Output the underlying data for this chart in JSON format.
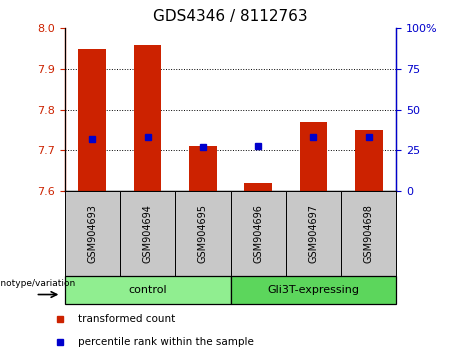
{
  "title": "GDS4346 / 8112763",
  "samples": [
    "GSM904693",
    "GSM904694",
    "GSM904695",
    "GSM904696",
    "GSM904697",
    "GSM904698"
  ],
  "transformed_counts": [
    7.95,
    7.96,
    7.71,
    7.62,
    7.77,
    7.75
  ],
  "percentile_ranks": [
    32,
    33,
    27,
    28,
    33,
    33
  ],
  "ylim_left": [
    7.6,
    8.0
  ],
  "ylim_right": [
    0,
    100
  ],
  "yticks_left": [
    7.6,
    7.7,
    7.8,
    7.9,
    8.0
  ],
  "yticks_right": [
    0,
    25,
    50,
    75,
    100
  ],
  "groups": [
    {
      "label": "control",
      "indices": [
        0,
        1,
        2
      ],
      "color": "#90ee90"
    },
    {
      "label": "Gli3T-expressing",
      "indices": [
        3,
        4,
        5
      ],
      "color": "#5cd65c"
    }
  ],
  "bar_color": "#cc2200",
  "dot_color": "#0000cc",
  "bar_bottom": 7.6,
  "legend_items": [
    {
      "label": "transformed count",
      "color": "#cc2200"
    },
    {
      "label": "percentile rank within the sample",
      "color": "#0000cc"
    }
  ],
  "group_label": "genotype/variation",
  "tick_label_fontsize": 8,
  "title_fontsize": 11,
  "group_header_bg": "#c8c8c8",
  "sample_label_fontsize": 7,
  "group_label_fontsize": 8,
  "legend_fontsize": 7.5
}
